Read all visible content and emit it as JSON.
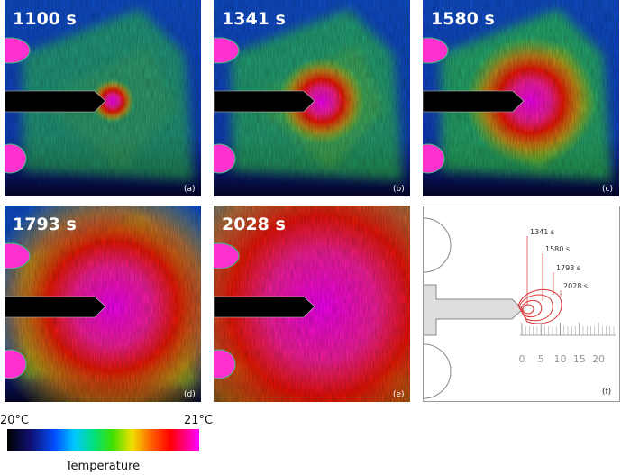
{
  "panels": [
    {
      "time": "1100 s",
      "label": "(a)"
    },
    {
      "time": "1341 s",
      "label": "(b)"
    },
    {
      "time": "1580 s",
      "label": "(c)"
    },
    {
      "time": "1793 s",
      "label": "(d)"
    },
    {
      "time": "2028 s",
      "label": "(e)"
    }
  ],
  "diagram": {
    "label": "(f)",
    "contours": [
      "1341 s",
      "1580 s",
      "1793 s",
      "2028 s"
    ],
    "scale_ticks": [
      0,
      5,
      10,
      15,
      20
    ]
  },
  "colorbar": {
    "min_label": "20°C",
    "max_label": "21°C",
    "title": "Temperature"
  }
}
